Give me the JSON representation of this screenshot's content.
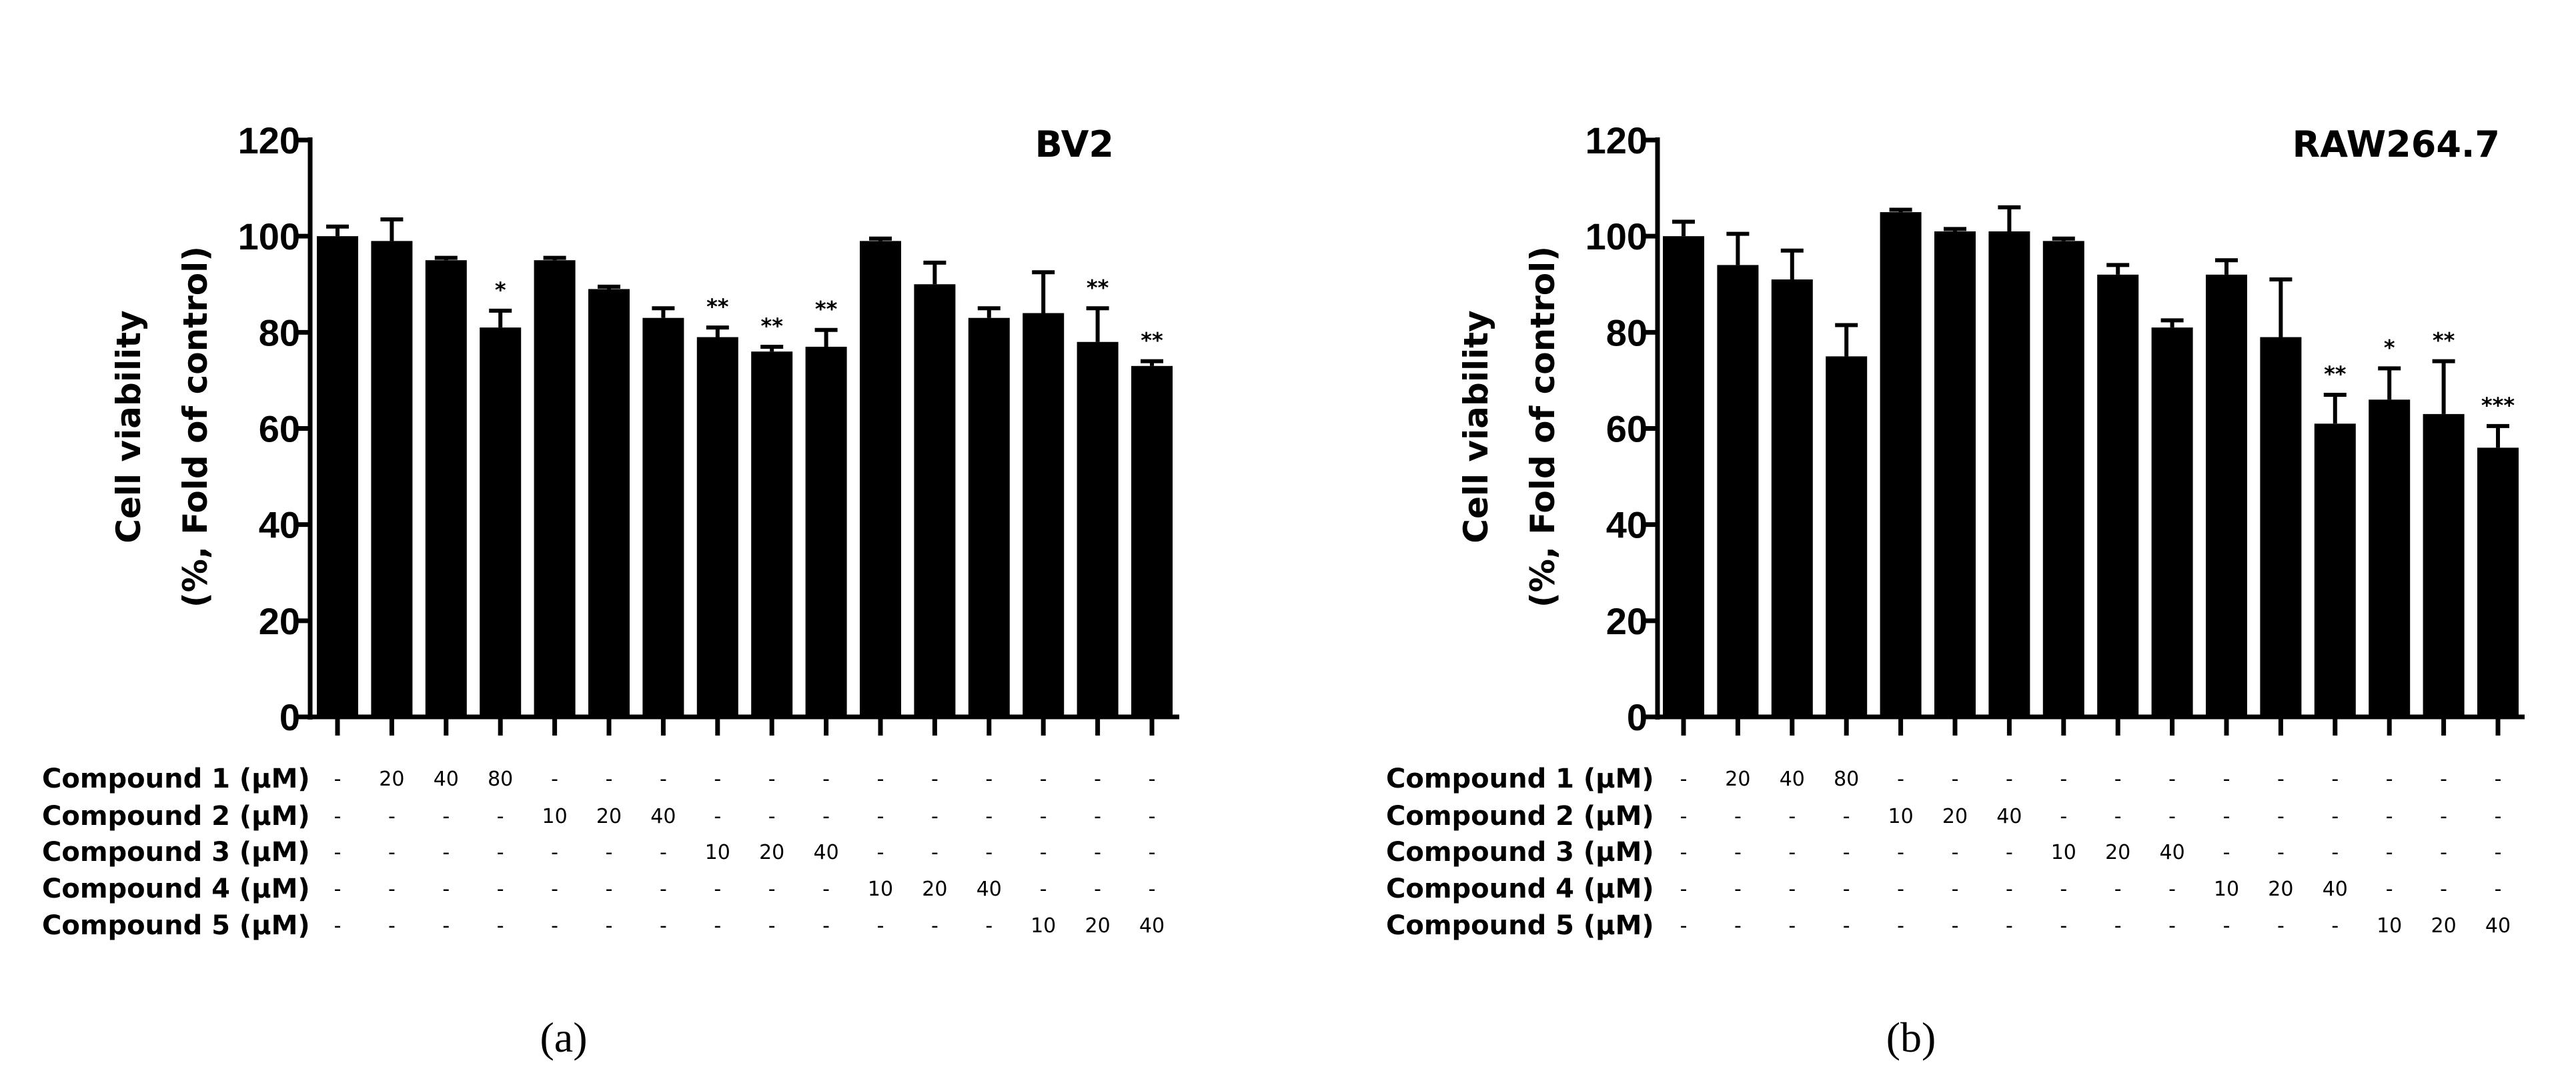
{
  "chart_data": [
    {
      "type": "bar",
      "panel_label": "(a)",
      "title": "BV2",
      "ylabel_line1": "Cell viability",
      "ylabel_line2": "(%, Fold of control)",
      "ylim": [
        0,
        120
      ],
      "yticks": [
        0,
        20,
        40,
        60,
        80,
        100,
        120
      ],
      "values": [
        100,
        99,
        95,
        81,
        95,
        89,
        83,
        79,
        76,
        77,
        99,
        90,
        83,
        84,
        78,
        73
      ],
      "errors": [
        2,
        4.5,
        0.5,
        3.5,
        0.5,
        0.5,
        2,
        2,
        1,
        3.5,
        0.5,
        4.5,
        2,
        8.5,
        7,
        1
      ],
      "significance": [
        "",
        "",
        "",
        "*",
        "",
        "",
        "",
        "**",
        "**",
        "**",
        "",
        "",
        "",
        "",
        "**",
        "**"
      ],
      "treatments": [
        {
          "label": "Compound 1 (μM)",
          "cells": [
            "-",
            "20",
            "40",
            "80",
            "-",
            "-",
            "-",
            "-",
            "-",
            "-",
            "-",
            "-",
            "-",
            "-",
            "-",
            "-"
          ]
        },
        {
          "label": "Compound 2 (μM)",
          "cells": [
            "-",
            "-",
            "-",
            "-",
            "10",
            "20",
            "40",
            "-",
            "-",
            "-",
            "-",
            "-",
            "-",
            "-",
            "-",
            "-"
          ]
        },
        {
          "label": "Compound 3 (μM)",
          "cells": [
            "-",
            "-",
            "-",
            "-",
            "-",
            "-",
            "-",
            "10",
            "20",
            "40",
            "-",
            "-",
            "-",
            "-",
            "-",
            "-"
          ]
        },
        {
          "label": "Compound 4 (μM)",
          "cells": [
            "-",
            "-",
            "-",
            "-",
            "-",
            "-",
            "-",
            "-",
            "-",
            "-",
            "10",
            "20",
            "40",
            "-",
            "-",
            "-"
          ]
        },
        {
          "label": "Compound 5 (μM)",
          "cells": [
            "-",
            "-",
            "-",
            "-",
            "-",
            "-",
            "-",
            "-",
            "-",
            "-",
            "-",
            "-",
            "-",
            "10",
            "20",
            "40"
          ]
        }
      ]
    },
    {
      "type": "bar",
      "panel_label": "(b)",
      "title": "RAW264.7",
      "ylabel_line1": "Cell viability",
      "ylabel_line2": "(%, Fold of control)",
      "ylim": [
        0,
        120
      ],
      "yticks": [
        0,
        20,
        40,
        60,
        80,
        100,
        120
      ],
      "values": [
        100,
        94,
        91,
        75,
        105,
        101,
        101,
        99,
        92,
        81,
        92,
        79,
        61,
        66,
        63,
        56
      ],
      "errors": [
        3,
        6.5,
        6,
        6.5,
        0.5,
        0.5,
        5,
        0.5,
        2,
        1.5,
        3,
        12,
        6,
        6.5,
        11,
        4.5
      ],
      "significance": [
        "",
        "",
        "",
        "",
        "",
        "",
        "",
        "",
        "",
        "",
        "",
        "",
        "**",
        "*",
        "**",
        "***"
      ],
      "treatments": [
        {
          "label": "Compound 1 (μM)",
          "cells": [
            "-",
            "20",
            "40",
            "80",
            "-",
            "-",
            "-",
            "-",
            "-",
            "-",
            "-",
            "-",
            "-",
            "-",
            "-",
            "-"
          ]
        },
        {
          "label": "Compound 2 (μM)",
          "cells": [
            "-",
            "-",
            "-",
            "-",
            "10",
            "20",
            "40",
            "-",
            "-",
            "-",
            "-",
            "-",
            "-",
            "-",
            "-",
            "-"
          ]
        },
        {
          "label": "Compound 3 (μM)",
          "cells": [
            "-",
            "-",
            "-",
            "-",
            "-",
            "-",
            "-",
            "10",
            "20",
            "40",
            "-",
            "-",
            "-",
            "-",
            "-",
            "-"
          ]
        },
        {
          "label": "Compound 4 (μM)",
          "cells": [
            "-",
            "-",
            "-",
            "-",
            "-",
            "-",
            "-",
            "-",
            "-",
            "-",
            "10",
            "20",
            "40",
            "-",
            "-",
            "-"
          ]
        },
        {
          "label": "Compound 5 (μM)",
          "cells": [
            "-",
            "-",
            "-",
            "-",
            "-",
            "-",
            "-",
            "-",
            "-",
            "-",
            "-",
            "-",
            "-",
            "10",
            "20",
            "40"
          ]
        }
      ]
    }
  ]
}
